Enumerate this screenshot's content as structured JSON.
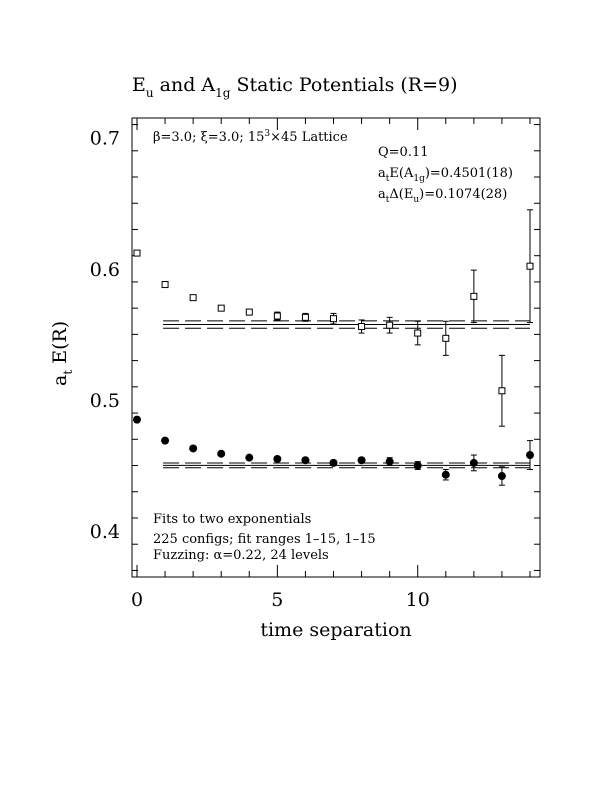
{
  "chart_data": {
    "type": "scatter",
    "title": {
      "parts": [
        "E",
        "u",
        " and A",
        "1g",
        " Static Potentials (R=9)"
      ]
    },
    "xlabel": "time separation",
    "ylabel": {
      "main": "a",
      "sub": "t",
      "rest": " E(R)"
    },
    "xlim": [
      0,
      14
    ],
    "ylim": [
      0.365,
      0.715
    ],
    "xticks": [
      0,
      5,
      10
    ],
    "xtick_labels": [
      "0",
      "5",
      "10"
    ],
    "yticks": [
      0.4,
      0.5,
      0.6,
      0.7
    ],
    "ytick_labels": [
      "0.4",
      "0.5",
      "0.6",
      "0.7"
    ],
    "grid": false,
    "series": [
      {
        "marker": "open-square",
        "color": "#000000",
        "points": [
          {
            "x": 0,
            "y": 0.612,
            "err": 0.002
          },
          {
            "x": 1,
            "y": 0.588,
            "err": 0.002
          },
          {
            "x": 2,
            "y": 0.578,
            "err": 0.002
          },
          {
            "x": 3,
            "y": 0.57,
            "err": 0.002
          },
          {
            "x": 4,
            "y": 0.567,
            "err": 0.002
          },
          {
            "x": 5,
            "y": 0.564,
            "err": 0.003
          },
          {
            "x": 6,
            "y": 0.563,
            "err": 0.003
          },
          {
            "x": 7,
            "y": 0.562,
            "err": 0.004
          },
          {
            "x": 8,
            "y": 0.556,
            "err": 0.005
          },
          {
            "x": 9,
            "y": 0.557,
            "err": 0.006
          },
          {
            "x": 10,
            "y": 0.551,
            "err": 0.009
          },
          {
            "x": 11,
            "y": 0.547,
            "err": 0.013
          },
          {
            "x": 12,
            "y": 0.579,
            "err": 0.02
          },
          {
            "x": 13,
            "y": 0.507,
            "err": 0.027
          },
          {
            "x": 14,
            "y": 0.602,
            "err": 0.043
          }
        ],
        "fit": {
          "center": 0.5575,
          "band": 0.0028,
          "x_range": [
            1,
            14
          ]
        }
      },
      {
        "marker": "filled-circle",
        "color": "#000000",
        "points": [
          {
            "x": 0,
            "y": 0.485,
            "err": 0.001
          },
          {
            "x": 1,
            "y": 0.469,
            "err": 0.001
          },
          {
            "x": 2,
            "y": 0.463,
            "err": 0.001
          },
          {
            "x": 3,
            "y": 0.459,
            "err": 0.001
          },
          {
            "x": 4,
            "y": 0.456,
            "err": 0.001
          },
          {
            "x": 5,
            "y": 0.455,
            "err": 0.001
          },
          {
            "x": 6,
            "y": 0.454,
            "err": 0.002
          },
          {
            "x": 7,
            "y": 0.452,
            "err": 0.002
          },
          {
            "x": 8,
            "y": 0.454,
            "err": 0.002
          },
          {
            "x": 9,
            "y": 0.453,
            "err": 0.003
          },
          {
            "x": 10,
            "y": 0.45,
            "err": 0.003
          },
          {
            "x": 11,
            "y": 0.443,
            "err": 0.004
          },
          {
            "x": 12,
            "y": 0.452,
            "err": 0.006
          },
          {
            "x": 13,
            "y": 0.442,
            "err": 0.007
          },
          {
            "x": 14,
            "y": 0.458,
            "err": 0.011
          }
        ],
        "fit": {
          "center": 0.4501,
          "band": 0.0018,
          "x_range": [
            1,
            14
          ]
        }
      }
    ],
    "annotations": {
      "top_left": {
        "parts": [
          "β=3.0; ξ=3.0; 15",
          "3",
          "×45 Lattice"
        ]
      },
      "top_right": {
        "q": "Q=0.11",
        "line2": [
          "a",
          "t",
          "E(A",
          "1g",
          ")=0.4501(18)"
        ],
        "line3": [
          "a",
          "t",
          "Δ(E",
          "u",
          ")=0.1074(28)"
        ]
      },
      "bottom_left": {
        "line1": "Fits to two exponentials",
        "line2": "225 configs; fit ranges 1–15, 1–15",
        "line3": "Fuzzing: α=0.22, 24 levels"
      }
    }
  }
}
